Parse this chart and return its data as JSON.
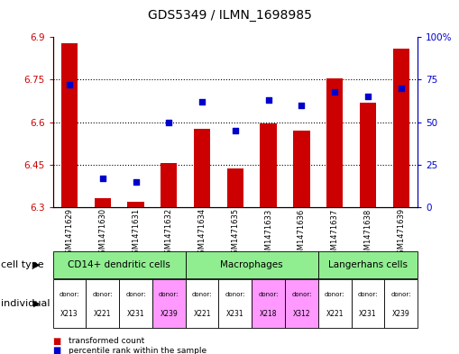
{
  "title": "GDS5349 / ILMN_1698985",
  "samples": [
    "GSM1471629",
    "GSM1471630",
    "GSM1471631",
    "GSM1471632",
    "GSM1471634",
    "GSM1471635",
    "GSM1471633",
    "GSM1471636",
    "GSM1471637",
    "GSM1471638",
    "GSM1471639"
  ],
  "red_values": [
    6.88,
    6.33,
    6.32,
    6.455,
    6.575,
    6.435,
    6.595,
    6.57,
    6.755,
    6.67,
    6.86
  ],
  "blue_values": [
    72,
    17,
    15,
    50,
    62,
    45,
    63,
    60,
    68,
    65,
    70
  ],
  "ylim_left": [
    6.3,
    6.9
  ],
  "ylim_right": [
    0,
    100
  ],
  "yticks_left": [
    6.3,
    6.45,
    6.6,
    6.75,
    6.9
  ],
  "ytick_labels_left": [
    "6.3",
    "6.45",
    "6.6",
    "6.75",
    "6.9"
  ],
  "yticks_right": [
    0,
    25,
    50,
    75,
    100
  ],
  "ytick_labels_right": [
    "0",
    "25",
    "50",
    "75",
    "100%"
  ],
  "hlines": [
    6.45,
    6.6,
    6.75
  ],
  "bar_color": "#cc0000",
  "dot_color": "#0000cc",
  "axis_left_color": "#cc0000",
  "axis_right_color": "#0000cc",
  "cell_type_groups": [
    {
      "label": "CD14+ dendritic cells",
      "start": 0,
      "end": 4,
      "color": "#90ee90"
    },
    {
      "label": "Macrophages",
      "start": 4,
      "end": 8,
      "color": "#90ee90"
    },
    {
      "label": "Langerhans cells",
      "start": 8,
      "end": 11,
      "color": "#90ee90"
    }
  ],
  "individual_labels": [
    "X213",
    "X221",
    "X231",
    "X239",
    "X221",
    "X231",
    "X218",
    "X312",
    "X221",
    "X231",
    "X239"
  ],
  "individual_colors": [
    "#ffffff",
    "#ffffff",
    "#ffffff",
    "#ff99ff",
    "#ffffff",
    "#ffffff",
    "#ff99ff",
    "#ff99ff",
    "#ffffff",
    "#ffffff",
    "#ffffff"
  ],
  "legend_items": [
    {
      "label": "transformed count",
      "color": "#cc0000"
    },
    {
      "label": "percentile rank within the sample",
      "color": "#0000cc"
    }
  ],
  "cell_type_row_label": "cell type",
  "individual_row_label": "individual"
}
